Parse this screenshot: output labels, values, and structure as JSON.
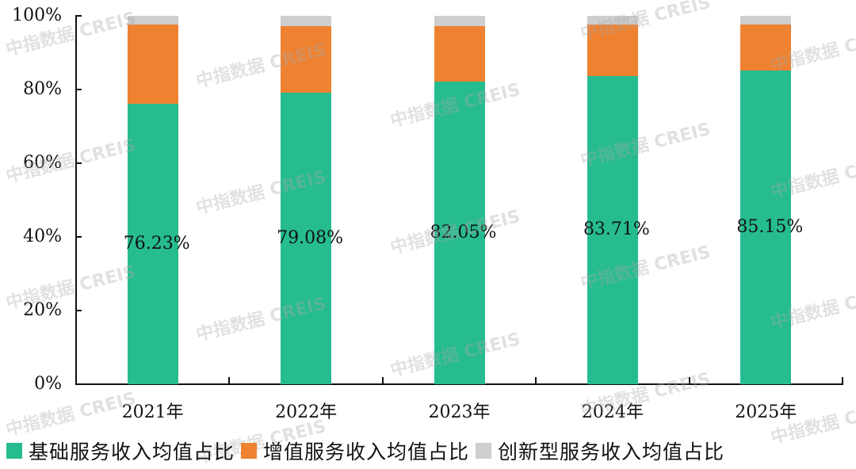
{
  "chart_data": {
    "type": "bar",
    "stacked": true,
    "title": "",
    "xlabel": "",
    "ylabel": "",
    "categories": [
      "2021年",
      "2022年",
      "2023年",
      "2024年",
      "2025年"
    ],
    "series": [
      {
        "name": "基础服务收入均值占比",
        "color": "#26BC8F",
        "values": [
          76.23,
          79.08,
          82.05,
          83.71,
          85.15
        ]
      },
      {
        "name": "增值服务收入均值占比",
        "color": "#EE8231",
        "values": [
          21.4,
          18.1,
          15.1,
          13.9,
          12.4
        ]
      },
      {
        "name": "创新型服务收入均值占比",
        "color": "#CFCDCE",
        "values": [
          2.37,
          2.82,
          2.85,
          2.39,
          2.45
        ]
      }
    ],
    "data_labels": [
      "76.23%",
      "79.08%",
      "82.05%",
      "83.71%",
      "85.15%"
    ],
    "yticks": [
      "0%",
      "20%",
      "40%",
      "60%",
      "80%",
      "100%"
    ],
    "ylim": [
      0,
      100
    ],
    "grid": false,
    "legend_position": "bottom"
  },
  "watermark": {
    "text_cn": "中指数据",
    "text_en": "CREIS"
  }
}
